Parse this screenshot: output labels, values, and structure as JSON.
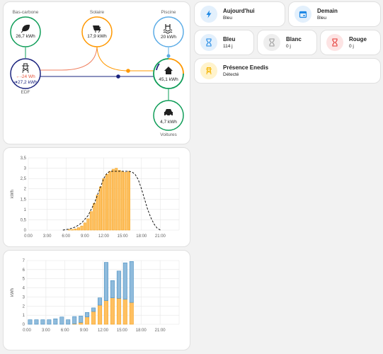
{
  "energy_flow": {
    "low_carbon": {
      "label": "Bas-carbone",
      "value": "26,7 kWh",
      "color": "#0f9d58"
    },
    "solar": {
      "label": "Solaire",
      "value": "17,9 kWh",
      "color": "#ff9800"
    },
    "pool": {
      "label": "Piscine",
      "value": "20 kWh",
      "color": "#5cace6"
    },
    "grid": {
      "label": "EDF",
      "consumption": "←-24 Wh",
      "production": "➔27,2 kWh",
      "color": "#1a237e"
    },
    "home": {
      "value": "45,1 kWh"
    },
    "cars": {
      "label": "Voitures",
      "value": "4,7 kWh",
      "color": "#0f9d58"
    }
  },
  "tiles": {
    "today": {
      "name": "Aujourd'hui",
      "state": "Bleu",
      "icon": "lightning-icon"
    },
    "tomorrow": {
      "name": "Demain",
      "state": "Bleu",
      "icon": "calendar-icon"
    },
    "blue": {
      "name": "Bleu",
      "state": "114 j",
      "icon": "hourglass-icon"
    },
    "white": {
      "name": "Blanc",
      "state": "0 j",
      "icon": "hourglass-icon"
    },
    "red": {
      "name": "Rouge",
      "state": "0 j",
      "icon": "hourglass-icon"
    },
    "enedis": {
      "name": "Présence Enedis",
      "state": "Détecté",
      "icon": "pylon-icon"
    }
  },
  "chart_data": [
    {
      "type": "bar",
      "ylabel": "kWh",
      "x_ticks": [
        "0:00",
        "3:00",
        "6:00",
        "9:00",
        "12:00",
        "15:00",
        "18:00",
        "21:00"
      ],
      "y_ticks": [
        "0",
        "0,5",
        "1",
        "1,5",
        "2",
        "2,5",
        "3",
        "3,5"
      ],
      "ylim": [
        0,
        3.5
      ],
      "xlim": [
        0,
        24
      ],
      "grid": true,
      "colors": {
        "bar": "#ffc061",
        "bar_stroke": "#f5a623",
        "forecast": "#000000"
      },
      "series": [
        {
          "type": "bar",
          "x": [
            6.5,
            7,
            7.5,
            8,
            8.5,
            9,
            9.5,
            10,
            10.5,
            11,
            11.5,
            12,
            12.5,
            13,
            13.5,
            14,
            14.5,
            15,
            15.5,
            16
          ],
          "values": [
            0.02,
            0.03,
            0.06,
            0.12,
            0.2,
            0.35,
            0.55,
            0.9,
            1.3,
            1.7,
            2.1,
            2.5,
            2.7,
            2.85,
            2.95,
            3.0,
            2.9,
            2.85,
            2.8,
            2.85
          ]
        },
        {
          "type": "line",
          "x": [
            5.5,
            6.5,
            7.5,
            8.5,
            9.5,
            10.5,
            11.5,
            12,
            12.5,
            13,
            13.5,
            14,
            14.5,
            15,
            15.5,
            16,
            16.5,
            17,
            17.5,
            18,
            18.5,
            19,
            19.5,
            20,
            20.5,
            21
          ],
          "values": [
            0,
            0.05,
            0.15,
            0.35,
            0.7,
            1.3,
            2.1,
            2.5,
            2.75,
            2.85,
            2.85,
            2.85,
            2.85,
            2.85,
            2.85,
            2.85,
            2.82,
            2.7,
            2.45,
            2.0,
            1.5,
            1.0,
            0.6,
            0.3,
            0.1,
            0.0
          ]
        }
      ]
    },
    {
      "type": "bar",
      "ylabel": "kWh",
      "x_ticks": [
        "0:00",
        "3:00",
        "6:00",
        "9:00",
        "12:00",
        "15:00",
        "18:00",
        "21:00"
      ],
      "y_ticks": [
        "0",
        "1",
        "2",
        "3",
        "4",
        "5",
        "6",
        "7"
      ],
      "ylim": [
        0,
        7
      ],
      "xlim": [
        0,
        24
      ],
      "grid": true,
      "colors": {
        "solar": "#ffc061",
        "solar_stroke": "#f5a623",
        "grid": "#8fbbdc",
        "grid_stroke": "#4a90c2"
      },
      "hours": [
        0,
        1,
        2,
        3,
        4,
        5,
        6,
        7,
        8,
        9,
        10,
        11,
        12,
        13,
        14,
        15,
        16
      ],
      "series": [
        {
          "name": "",
          "role": "solar",
          "values": [
            0,
            0,
            0,
            0,
            0,
            0,
            0,
            0.05,
            0.2,
            0.8,
            1.4,
            2.1,
            2.6,
            2.9,
            2.85,
            2.75,
            2.4
          ]
        },
        {
          "name": "",
          "role": "grid",
          "values": [
            0.5,
            0.5,
            0.5,
            0.5,
            0.6,
            0.8,
            0.5,
            0.8,
            0.7,
            0.5,
            0.4,
            0.8,
            4.2,
            1.9,
            3.0,
            4.0,
            4.5
          ]
        }
      ]
    }
  ]
}
